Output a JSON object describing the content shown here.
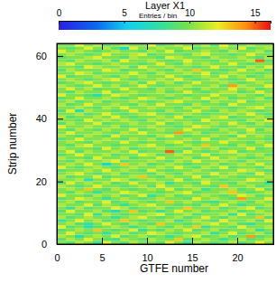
{
  "chart_data": {
    "type": "heatmap",
    "title": "Layer X1",
    "subtitle": "Entries / bin",
    "x_label": "GTFE number",
    "y_label": "Strip number",
    "xlim": [
      0,
      24
    ],
    "xticks": [
      0,
      5,
      10,
      15,
      20
    ],
    "ylim": [
      0,
      64
    ],
    "yticks": [
      0,
      20,
      40,
      60
    ],
    "zlim": [
      0,
      16.2
    ],
    "zticks": [
      0,
      5,
      10,
      15
    ],
    "z": [
      [
        10,
        9,
        11,
        10,
        8,
        12,
        10,
        9,
        11,
        10,
        10,
        9,
        12,
        10,
        8,
        11,
        10,
        9,
        10,
        11,
        9,
        10,
        12,
        10
      ],
      [
        9,
        11,
        10,
        12,
        10,
        9,
        8,
        11,
        10,
        9,
        11,
        10,
        10,
        13,
        9,
        10,
        11,
        10,
        8,
        10,
        11,
        9,
        10,
        11
      ],
      [
        11,
        10,
        7,
        10,
        11,
        10,
        12,
        9,
        10,
        11,
        9,
        10,
        8,
        10,
        11,
        12,
        9,
        10,
        11,
        9,
        10,
        14,
        9,
        10
      ],
      [
        10,
        12,
        10,
        9,
        10,
        8,
        10,
        11,
        9,
        10,
        12,
        11,
        10,
        9,
        10,
        10,
        11,
        8,
        10,
        12,
        9,
        10,
        11,
        9
      ],
      [
        9,
        10,
        11,
        10,
        13,
        10,
        9,
        10,
        12,
        8,
        10,
        9,
        11,
        10,
        12,
        9,
        10,
        11,
        9,
        10,
        10,
        11,
        8,
        10
      ],
      [
        12,
        9,
        10,
        7,
        9,
        10,
        11,
        10,
        8,
        10,
        11,
        10,
        9,
        11,
        10,
        13,
        8,
        10,
        10,
        9,
        12,
        10,
        10,
        11
      ],
      [
        10,
        11,
        9,
        8,
        10,
        12,
        10,
        9,
        11,
        10,
        9,
        13,
        10,
        10,
        9,
        10,
        11,
        12,
        10,
        11,
        9,
        8,
        10,
        10
      ],
      [
        8,
        10,
        12,
        10,
        11,
        9,
        10,
        13,
        10,
        9,
        10,
        10,
        11,
        8,
        10,
        11,
        10,
        9,
        12,
        10,
        10,
        11,
        9,
        12
      ],
      [
        11,
        9,
        10,
        11,
        10,
        10,
        8,
        10,
        11,
        12,
        10,
        9,
        10,
        11,
        9,
        10,
        12,
        10,
        9,
        11,
        10,
        10,
        13,
        9
      ],
      [
        10,
        10,
        9,
        12,
        8,
        11,
        10,
        9,
        10,
        10,
        11,
        12,
        9,
        10,
        11,
        9,
        10,
        10,
        11,
        8,
        12,
        9,
        10,
        11
      ],
      [
        9,
        12,
        10,
        10,
        11,
        9,
        7,
        10,
        13,
        9,
        10,
        8,
        10,
        12,
        10,
        11,
        9,
        10,
        10,
        11,
        9,
        10,
        11,
        10
      ],
      [
        10,
        8,
        11,
        9,
        10,
        10,
        12,
        11,
        9,
        10,
        10,
        11,
        9,
        10,
        13,
        10,
        10,
        11,
        9,
        10,
        11,
        12,
        9,
        10
      ],
      [
        11,
        10,
        10,
        12,
        9,
        11,
        10,
        8,
        10,
        11,
        12,
        10,
        10,
        9,
        10,
        9,
        11,
        10,
        12,
        10,
        8,
        10,
        10,
        11
      ],
      [
        10,
        11,
        9,
        10,
        10,
        12,
        9,
        10,
        11,
        10,
        9,
        10,
        13,
        10,
        11,
        10,
        9,
        8,
        10,
        11,
        10,
        9,
        11,
        10
      ],
      [
        9,
        10,
        12,
        11,
        10,
        8,
        10,
        11,
        10,
        9,
        10,
        11,
        10,
        10,
        9,
        12,
        10,
        11,
        10,
        9,
        14,
        10,
        10,
        12
      ],
      [
        12,
        10,
        10,
        9,
        11,
        10,
        11,
        9,
        10,
        12,
        8,
        10,
        11,
        9,
        10,
        10,
        11,
        10,
        9,
        10,
        12,
        11,
        9,
        10
      ],
      [
        10,
        9,
        11,
        10,
        8,
        10,
        10,
        12,
        11,
        10,
        10,
        9,
        10,
        11,
        12,
        9,
        10,
        10,
        11,
        13,
        10,
        9,
        10,
        11
      ],
      [
        10,
        11,
        10,
        13,
        10,
        9,
        11,
        10,
        9,
        10,
        11,
        10,
        12,
        9,
        10,
        11,
        8,
        10,
        10,
        11,
        9,
        10,
        12,
        9
      ],
      [
        11,
        10,
        9,
        10,
        12,
        10,
        10,
        9,
        10,
        11,
        9,
        12,
        10,
        10,
        11,
        10,
        10,
        9,
        13,
        10,
        10,
        11,
        9,
        10
      ],
      [
        9,
        12,
        10,
        11,
        10,
        11,
        9,
        10,
        12,
        10,
        10,
        11,
        8,
        10,
        10,
        9,
        12,
        10,
        10,
        9,
        11,
        10,
        10,
        8
      ],
      [
        10,
        10,
        11,
        7,
        10,
        10,
        12,
        11,
        9,
        10,
        11,
        10,
        10,
        12,
        9,
        10,
        11,
        10,
        9,
        10,
        10,
        12,
        11,
        10
      ],
      [
        11,
        9,
        10,
        10,
        12,
        9,
        10,
        10,
        11,
        13,
        10,
        9,
        11,
        10,
        10,
        12,
        9,
        10,
        11,
        10,
        9,
        10,
        10,
        11
      ],
      [
        10,
        11,
        12,
        10,
        9,
        10,
        11,
        9,
        10,
        10,
        9,
        11,
        10,
        9,
        11,
        10,
        10,
        12,
        10,
        11,
        10,
        9,
        12,
        10
      ],
      [
        9,
        10,
        10,
        11,
        10,
        12,
        10,
        11,
        10,
        9,
        12,
        10,
        9,
        10,
        10,
        11,
        10,
        9,
        10,
        10,
        12,
        11,
        10,
        9
      ],
      [
        12,
        10,
        9,
        10,
        11,
        10,
        9,
        10,
        11,
        10,
        10,
        11,
        10,
        12,
        10,
        9,
        11,
        10,
        12,
        9,
        10,
        10,
        9,
        11
      ],
      [
        10,
        11,
        10,
        12,
        10,
        6,
        10,
        13,
        10,
        11,
        9,
        10,
        11,
        10,
        9,
        10,
        10,
        11,
        9,
        10,
        11,
        10,
        12,
        10
      ],
      [
        10,
        9,
        11,
        10,
        10,
        11,
        12,
        9,
        10,
        10,
        11,
        10,
        9,
        11,
        10,
        12,
        10,
        10,
        11,
        10,
        9,
        11,
        10,
        10
      ],
      [
        11,
        10,
        10,
        9,
        12,
        10,
        10,
        11,
        9,
        10,
        10,
        12,
        10,
        10,
        11,
        9,
        10,
        12,
        10,
        11,
        10,
        9,
        10,
        11
      ],
      [
        9,
        10,
        12,
        10,
        10,
        11,
        9,
        10,
        10,
        12,
        11,
        9,
        10,
        11,
        10,
        10,
        12,
        9,
        10,
        10,
        11,
        10,
        11,
        9
      ],
      [
        10,
        12,
        9,
        11,
        10,
        10,
        11,
        10,
        12,
        9,
        10,
        10,
        15,
        9,
        12,
        10,
        9,
        10,
        11,
        12,
        9,
        10,
        10,
        10
      ],
      [
        11,
        10,
        10,
        10,
        9,
        12,
        10,
        11,
        9,
        10,
        10,
        11,
        10,
        10,
        9,
        11,
        10,
        11,
        9,
        10,
        10,
        12,
        9,
        10
      ],
      [
        10,
        9,
        11,
        12,
        10,
        10,
        9,
        10,
        10,
        11,
        12,
        10,
        9,
        10,
        11,
        10,
        13,
        10,
        10,
        9,
        11,
        10,
        10,
        12
      ],
      [
        10,
        11,
        10,
        9,
        11,
        10,
        10,
        12,
        10,
        9,
        10,
        10,
        11,
        12,
        10,
        9,
        10,
        10,
        12,
        10,
        10,
        9,
        11,
        10
      ],
      [
        9,
        10,
        12,
        10,
        10,
        11,
        10,
        9,
        11,
        10,
        11,
        9,
        10,
        10,
        11,
        10,
        12,
        9,
        10,
        11,
        10,
        10,
        10,
        9
      ],
      [
        11,
        10,
        9,
        11,
        10,
        9,
        12,
        10,
        10,
        10,
        9,
        11,
        12,
        10,
        9,
        10,
        10,
        11,
        10,
        9,
        12,
        10,
        11,
        10
      ],
      [
        10,
        12,
        10,
        10,
        11,
        10,
        9,
        11,
        10,
        12,
        10,
        10,
        9,
        14,
        10,
        11,
        9,
        10,
        10,
        11,
        9,
        11,
        10,
        10
      ],
      [
        10,
        9,
        11,
        10,
        9,
        11,
        10,
        10,
        12,
        9,
        10,
        11,
        10,
        10,
        12,
        10,
        10,
        9,
        11,
        10,
        10,
        12,
        9,
        11
      ],
      [
        12,
        10,
        10,
        11,
        10,
        10,
        11,
        9,
        10,
        10,
        11,
        10,
        10,
        9,
        10,
        12,
        11,
        10,
        9,
        10,
        11,
        10,
        10,
        9
      ],
      [
        9,
        11,
        10,
        10,
        12,
        9,
        10,
        10,
        11,
        10,
        10,
        12,
        9,
        10,
        11,
        10,
        10,
        11,
        10,
        12,
        10,
        9,
        11,
        10
      ],
      [
        10,
        10,
        9,
        12,
        10,
        11,
        10,
        11,
        10,
        9,
        11,
        10,
        11,
        10,
        10,
        9,
        12,
        10,
        10,
        10,
        9,
        11,
        10,
        12
      ],
      [
        11,
        9,
        10,
        10,
        11,
        10,
        12,
        10,
        9,
        10,
        10,
        11,
        10,
        12,
        9,
        10,
        10,
        11,
        12,
        9,
        10,
        10,
        11,
        10
      ],
      [
        10,
        10,
        11,
        9,
        10,
        12,
        10,
        9,
        10,
        11,
        12,
        10,
        9,
        10,
        11,
        10,
        9,
        10,
        10,
        11,
        10,
        12,
        10,
        9
      ],
      [
        9,
        12,
        7,
        11,
        10,
        10,
        9,
        10,
        12,
        10,
        10,
        9,
        11,
        10,
        10,
        12,
        10,
        9,
        11,
        10,
        11,
        10,
        9,
        10
      ],
      [
        10,
        10,
        11,
        10,
        9,
        11,
        10,
        12,
        10,
        10,
        11,
        10,
        10,
        9,
        11,
        10,
        11,
        10,
        10,
        9,
        10,
        11,
        12,
        10
      ],
      [
        11,
        9,
        10,
        12,
        10,
        10,
        11,
        10,
        9,
        11,
        10,
        12,
        10,
        10,
        9,
        11,
        10,
        10,
        9,
        12,
        10,
        10,
        10,
        11
      ],
      [
        10,
        11,
        9,
        10,
        11,
        9,
        10,
        10,
        11,
        10,
        9,
        10,
        11,
        12,
        10,
        10,
        9,
        11,
        10,
        10,
        12,
        9,
        10,
        10
      ],
      [
        9,
        10,
        12,
        10,
        10,
        11,
        10,
        9,
        10,
        12,
        11,
        10,
        9,
        10,
        11,
        10,
        12,
        10,
        11,
        9,
        10,
        10,
        11,
        9
      ],
      [
        12,
        10,
        10,
        9,
        7,
        10,
        12,
        11,
        10,
        9,
        10,
        10,
        11,
        10,
        9,
        10,
        10,
        12,
        10,
        10,
        11,
        10,
        9,
        11
      ],
      [
        10,
        9,
        11,
        10,
        10,
        12,
        9,
        10,
        11,
        10,
        10,
        11,
        9,
        10,
        12,
        10,
        9,
        10,
        11,
        11,
        9,
        10,
        12,
        10
      ],
      [
        10,
        12,
        10,
        11,
        9,
        10,
        10,
        12,
        10,
        10,
        9,
        11,
        10,
        11,
        10,
        9,
        11,
        10,
        10,
        12,
        10,
        11,
        9,
        10
      ],
      [
        11,
        10,
        9,
        10,
        12,
        10,
        11,
        9,
        10,
        12,
        10,
        9,
        10,
        10,
        11,
        10,
        10,
        11,
        9,
        14,
        11,
        10,
        10,
        12
      ],
      [
        9,
        10,
        11,
        12,
        10,
        9,
        10,
        10,
        11,
        9,
        12,
        10,
        11,
        9,
        10,
        12,
        10,
        10,
        11,
        10,
        9,
        10,
        11,
        10
      ],
      [
        10,
        11,
        10,
        9,
        10,
        11,
        12,
        10,
        9,
        10,
        10,
        11,
        10,
        12,
        10,
        9,
        10,
        11,
        10,
        9,
        10,
        12,
        10,
        10
      ],
      [
        12,
        9,
        10,
        10,
        11,
        10,
        9,
        11,
        10,
        11,
        10,
        10,
        12,
        10,
        9,
        10,
        11,
        10,
        12,
        10,
        11,
        9,
        10,
        11
      ],
      [
        10,
        10,
        12,
        11,
        9,
        10,
        10,
        10,
        12,
        10,
        9,
        11,
        10,
        10,
        11,
        10,
        12,
        9,
        10,
        11,
        10,
        10,
        9,
        10
      ],
      [
        9,
        11,
        10,
        10,
        10,
        12,
        11,
        9,
        10,
        10,
        11,
        10,
        9,
        11,
        10,
        13,
        10,
        10,
        9,
        10,
        12,
        10,
        11,
        9
      ],
      [
        10,
        10,
        9,
        12,
        11,
        10,
        10,
        11,
        9,
        12,
        10,
        10,
        11,
        10,
        10,
        9,
        10,
        12,
        10,
        10,
        9,
        11,
        10,
        12
      ],
      [
        11,
        12,
        10,
        10,
        9,
        10,
        11,
        10,
        10,
        9,
        10,
        12,
        10,
        9,
        11,
        10,
        11,
        10,
        10,
        12,
        10,
        9,
        10,
        10
      ],
      [
        10,
        9,
        11,
        10,
        10,
        11,
        9,
        12,
        10,
        10,
        11,
        10,
        9,
        10,
        12,
        10,
        10,
        9,
        11,
        10,
        10,
        11,
        15,
        9
      ],
      [
        9,
        10,
        10,
        11,
        12,
        10,
        10,
        9,
        11,
        10,
        10,
        9,
        12,
        11,
        10,
        10,
        9,
        11,
        10,
        10,
        11,
        10,
        9,
        11
      ],
      [
        10,
        11,
        10,
        9,
        10,
        12,
        10,
        10,
        11,
        12,
        9,
        10,
        10,
        10,
        9,
        11,
        12,
        10,
        10,
        9,
        10,
        12,
        10,
        10
      ],
      [
        12,
        10,
        11,
        10,
        9,
        10,
        11,
        10,
        10,
        9,
        11,
        10,
        12,
        9,
        10,
        10,
        11,
        10,
        9,
        11,
        10,
        10,
        11,
        9
      ],
      [
        10,
        9,
        10,
        12,
        10,
        11,
        9,
        6,
        12,
        10,
        10,
        11,
        10,
        10,
        12,
        9,
        10,
        10,
        11,
        10,
        12,
        9,
        10,
        11
      ],
      [
        10,
        10,
        12,
        10,
        11,
        9,
        10,
        11,
        10,
        10,
        12,
        9,
        10,
        11,
        10,
        10,
        11,
        9,
        12,
        10,
        10,
        11,
        10,
        10
      ]
    ]
  }
}
